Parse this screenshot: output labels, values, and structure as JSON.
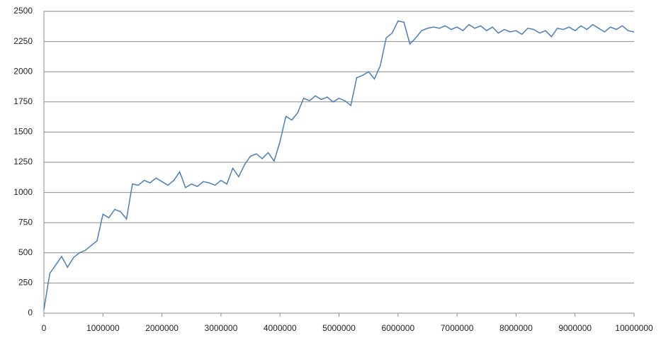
{
  "chart_data": {
    "type": "line",
    "x": [
      0,
      100000,
      200000,
      300000,
      400000,
      500000,
      600000,
      700000,
      800000,
      900000,
      1000000,
      1100000,
      1200000,
      1300000,
      1400000,
      1500000,
      1600000,
      1700000,
      1800000,
      1900000,
      2000000,
      2100000,
      2200000,
      2300000,
      2400000,
      2500000,
      2600000,
      2700000,
      2800000,
      2900000,
      3000000,
      3100000,
      3200000,
      3300000,
      3400000,
      3500000,
      3600000,
      3700000,
      3800000,
      3900000,
      4000000,
      4100000,
      4200000,
      4300000,
      4400000,
      4500000,
      4600000,
      4700000,
      4800000,
      4900000,
      5000000,
      5100000,
      5200000,
      5300000,
      5400000,
      5500000,
      5600000,
      5700000,
      5800000,
      5900000,
      6000000,
      6100000,
      6200000,
      6300000,
      6400000,
      6500000,
      6600000,
      6700000,
      6800000,
      6900000,
      7000000,
      7100000,
      7200000,
      7300000,
      7400000,
      7500000,
      7600000,
      7700000,
      7800000,
      7900000,
      8000000,
      8100000,
      8200000,
      8300000,
      8400000,
      8500000,
      8600000,
      8700000,
      8800000,
      8900000,
      9000000,
      9100000,
      9200000,
      9300000,
      9400000,
      9500000,
      9600000,
      9700000,
      9800000,
      9900000,
      10000000
    ],
    "values": [
      30,
      330,
      400,
      470,
      380,
      460,
      500,
      520,
      560,
      600,
      820,
      790,
      860,
      840,
      780,
      1070,
      1060,
      1100,
      1080,
      1120,
      1090,
      1060,
      1100,
      1170,
      1040,
      1070,
      1050,
      1090,
      1080,
      1060,
      1100,
      1070,
      1200,
      1130,
      1230,
      1300,
      1320,
      1280,
      1330,
      1260,
      1420,
      1630,
      1600,
      1660,
      1780,
      1760,
      1800,
      1770,
      1790,
      1750,
      1780,
      1760,
      1720,
      1950,
      1970,
      2000,
      1940,
      2050,
      2280,
      2320,
      2420,
      2410,
      2230,
      2280,
      2340,
      2360,
      2370,
      2360,
      2380,
      2350,
      2370,
      2340,
      2390,
      2360,
      2380,
      2340,
      2370,
      2320,
      2350,
      2330,
      2340,
      2310,
      2360,
      2350,
      2320,
      2340,
      2290,
      2360,
      2350,
      2370,
      2340,
      2380,
      2350,
      2390,
      2360,
      2330,
      2370,
      2350,
      2380,
      2340,
      2330
    ],
    "color": "#4a7ebb",
    "xlim": [
      0,
      10000000
    ],
    "xticks": [
      0,
      1000000,
      2000000,
      3000000,
      4000000,
      5000000,
      6000000,
      7000000,
      8000000,
      9000000,
      10000000
    ],
    "ylim": [
      0,
      2500
    ],
    "yticks": [
      0,
      250,
      500,
      750,
      1000,
      1250,
      1500,
      1750,
      2000,
      2250,
      2500
    ],
    "grid": true
  }
}
